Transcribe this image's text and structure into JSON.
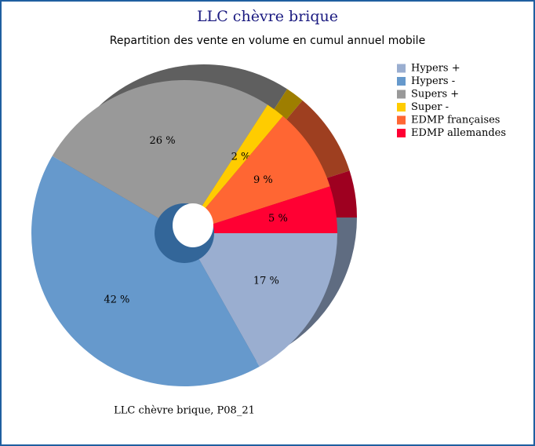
{
  "chart_data": {
    "type": "pie",
    "title": "LLC chèvre brique",
    "subtitle": "Repartition des vente en volume en cumul annuel mobile",
    "caption": "LLC chèvre brique, P08_21",
    "categories": [
      "Hypers +",
      "Hypers -",
      "Supers +",
      "Super -",
      "EDMP françaises",
      "EDMP allemandes"
    ],
    "values": [
      17,
      42,
      26,
      2,
      9,
      5
    ],
    "value_labels": [
      "17 %",
      "42 %",
      "26 %",
      "2 %",
      "9 %",
      "5 %"
    ],
    "colors": [
      "#9aaed0",
      "#6699cc",
      "#999999",
      "#ffcc00",
      "#ff6633",
      "#ff0033"
    ],
    "legend": "top-right"
  }
}
